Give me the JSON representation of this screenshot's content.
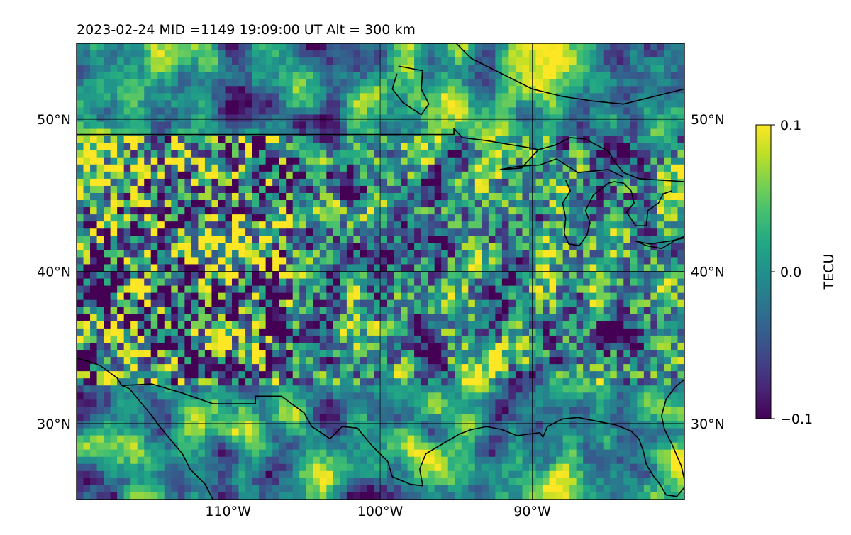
{
  "chart_data": {
    "type": "heatmap",
    "title": "2023-02-24  MID =1149    19:09:00  UT  Alt = 300 km",
    "colorbar": {
      "label": "TECU",
      "min": -0.1,
      "max": 0.1,
      "ticks": [
        "0.1",
        "0.0",
        "−0.1"
      ]
    },
    "lon_range": [
      -119.96,
      -80.0
    ],
    "lat_range": [
      25.0,
      55.0
    ],
    "x_ticks": [
      {
        "value": -110,
        "label": "110°W"
      },
      {
        "value": -100,
        "label": "100°W"
      },
      {
        "value": -90,
        "label": "90°W"
      }
    ],
    "y_ticks": [
      {
        "value": 50,
        "label": "50°N"
      },
      {
        "value": 40,
        "label": "40°N"
      },
      {
        "value": 30,
        "label": "30°N"
      }
    ],
    "grid": true,
    "colormap": "viridis",
    "colors": {
      "low": "#440154",
      "mid": "#21908c",
      "high": "#fde725"
    },
    "coastlines": [
      [
        [
          -119.96,
          34.3
        ],
        [
          -118.9,
          34.0
        ],
        [
          -118.4,
          33.8
        ],
        [
          -117.3,
          33.0
        ],
        [
          -117.0,
          32.5
        ],
        [
          -116.5,
          32.3
        ],
        [
          -115.0,
          30.5
        ],
        [
          -114.5,
          29.8
        ],
        [
          -113.0,
          28.0
        ],
        [
          -112.5,
          27.0
        ],
        [
          -111.5,
          26.0
        ],
        [
          -111.0,
          25.0
        ]
      ],
      [
        [
          -117.0,
          32.5
        ],
        [
          -115.0,
          32.6
        ],
        [
          -113.0,
          32.0
        ],
        [
          -111.0,
          31.3
        ],
        [
          -108.2,
          31.3
        ],
        [
          -108.2,
          31.8
        ],
        [
          -106.5,
          31.8
        ],
        [
          -105.0,
          30.7
        ],
        [
          -104.5,
          29.8
        ],
        [
          -103.3,
          29.0
        ],
        [
          -102.5,
          29.8
        ],
        [
          -101.5,
          29.7
        ],
        [
          -100.5,
          28.5
        ],
        [
          -99.5,
          27.5
        ],
        [
          -99.2,
          26.5
        ],
        [
          -98.0,
          26.0
        ],
        [
          -97.2,
          25.9
        ]
      ],
      [
        [
          -97.2,
          25.9
        ],
        [
          -97.4,
          27.0
        ],
        [
          -97.0,
          28.0
        ],
        [
          -96.0,
          28.6
        ],
        [
          -94.8,
          29.3
        ],
        [
          -94.0,
          29.6
        ],
        [
          -93.0,
          29.8
        ],
        [
          -92.0,
          29.6
        ],
        [
          -91.0,
          29.2
        ],
        [
          -89.5,
          29.4
        ],
        [
          -89.3,
          29.1
        ],
        [
          -89.0,
          29.8
        ],
        [
          -88.0,
          30.3
        ],
        [
          -87.0,
          30.4
        ],
        [
          -85.5,
          30.1
        ],
        [
          -84.5,
          29.9
        ],
        [
          -83.5,
          29.5
        ],
        [
          -83.0,
          29.0
        ],
        [
          -82.7,
          28.2
        ],
        [
          -82.5,
          27.3
        ],
        [
          -82.0,
          26.5
        ],
        [
          -81.6,
          26.0
        ],
        [
          -81.2,
          25.3
        ],
        [
          -80.5,
          25.2
        ],
        [
          -80.0,
          25.8
        ]
      ],
      [
        [
          -80.0,
          32.9
        ],
        [
          -80.6,
          32.4
        ],
        [
          -81.2,
          31.6
        ],
        [
          -81.5,
          30.5
        ],
        [
          -81.3,
          29.6
        ],
        [
          -80.8,
          28.6
        ],
        [
          -80.2,
          27.2
        ],
        [
          -80.0,
          26.3
        ]
      ],
      [
        [
          -119.96,
          49.0
        ],
        [
          -95.15,
          49.0
        ],
        [
          -95.15,
          49.4
        ],
        [
          -94.6,
          48.8
        ],
        [
          -93.0,
          48.6
        ],
        [
          -90.0,
          48.1
        ],
        [
          -89.6,
          48.0
        ],
        [
          -88.5,
          48.3
        ],
        [
          -87.5,
          48.8
        ],
        [
          -86.5,
          48.7
        ],
        [
          -85.0,
          47.9
        ],
        [
          -84.5,
          47.1
        ],
        [
          -84.0,
          46.5
        ],
        [
          -83.0,
          46.1
        ],
        [
          -81.5,
          46.0
        ],
        [
          -80.0,
          45.9
        ]
      ],
      [
        [
          -89.6,
          48.0
        ],
        [
          -90.7,
          46.8
        ],
        [
          -92.1,
          46.7
        ],
        [
          -91.0,
          46.9
        ],
        [
          -89.5,
          47.0
        ],
        [
          -88.4,
          47.4
        ],
        [
          -87.8,
          47.0
        ],
        [
          -87.0,
          46.5
        ],
        [
          -85.0,
          46.7
        ],
        [
          -84.6,
          46.5
        ],
        [
          -84.0,
          46.2
        ]
      ],
      [
        [
          -87.8,
          46.0
        ],
        [
          -87.5,
          45.3
        ],
        [
          -88.0,
          44.5
        ],
        [
          -87.8,
          43.5
        ],
        [
          -87.9,
          42.5
        ],
        [
          -87.6,
          41.8
        ],
        [
          -86.9,
          41.7
        ],
        [
          -86.4,
          42.4
        ],
        [
          -86.2,
          43.2
        ],
        [
          -86.5,
          44.0
        ],
        [
          -86.0,
          45.0
        ],
        [
          -85.0,
          45.8
        ],
        [
          -84.6,
          45.9
        ],
        [
          -84.0,
          45.8
        ],
        [
          -83.5,
          45.3
        ],
        [
          -83.3,
          44.5
        ],
        [
          -83.8,
          43.9
        ],
        [
          -83.2,
          43.0
        ],
        [
          -82.5,
          43.0
        ],
        [
          -82.4,
          44.0
        ],
        [
          -81.7,
          44.5
        ],
        [
          -81.4,
          45.1
        ],
        [
          -80.8,
          45.3
        ]
      ],
      [
        [
          -83.2,
          42.0
        ],
        [
          -82.5,
          41.7
        ],
        [
          -81.5,
          41.5
        ],
        [
          -80.5,
          42.1
        ],
        [
          -80.0,
          42.3
        ]
      ],
      [
        [
          -83.2,
          42.0
        ],
        [
          -82.3,
          41.8
        ],
        [
          -80.9,
          42.0
        ],
        [
          -80.0,
          42.2
        ]
      ],
      [
        [
          -97.0,
          55.0
        ],
        [
          -95.0,
          55.0
        ],
        [
          -94.0,
          54.0
        ],
        [
          -92.0,
          53.0
        ],
        [
          -90.0,
          52.0
        ],
        [
          -88.0,
          51.5
        ],
        [
          -86.0,
          51.2
        ],
        [
          -84.0,
          51.0
        ],
        [
          -82.0,
          51.5
        ],
        [
          -80.0,
          52.0
        ]
      ],
      [
        [
          -98.8,
          53.5
        ],
        [
          -97.2,
          53.2
        ],
        [
          -97.3,
          52.0
        ],
        [
          -96.8,
          51.0
        ],
        [
          -97.3,
          50.3
        ],
        [
          -98.5,
          51.1
        ],
        [
          -99.2,
          52.0
        ],
        [
          -98.9,
          53.0
        ]
      ]
    ]
  }
}
